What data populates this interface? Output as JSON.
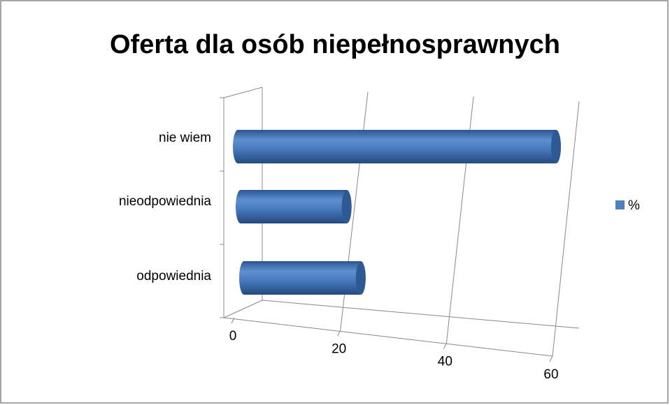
{
  "chart_data": {
    "type": "bar",
    "orientation": "horizontal",
    "title": "Oferta dla osób niepełnosprawnych",
    "categories": [
      "nie wiem",
      "nieodpowiednia",
      "odpowiednia"
    ],
    "series": [
      {
        "name": "%",
        "color": "#4f81bd",
        "values": [
          60,
          20,
          22
        ]
      }
    ],
    "xlim": [
      0,
      60
    ],
    "xticks": [
      0,
      20,
      40,
      60
    ],
    "grid": true,
    "legend": "right"
  }
}
